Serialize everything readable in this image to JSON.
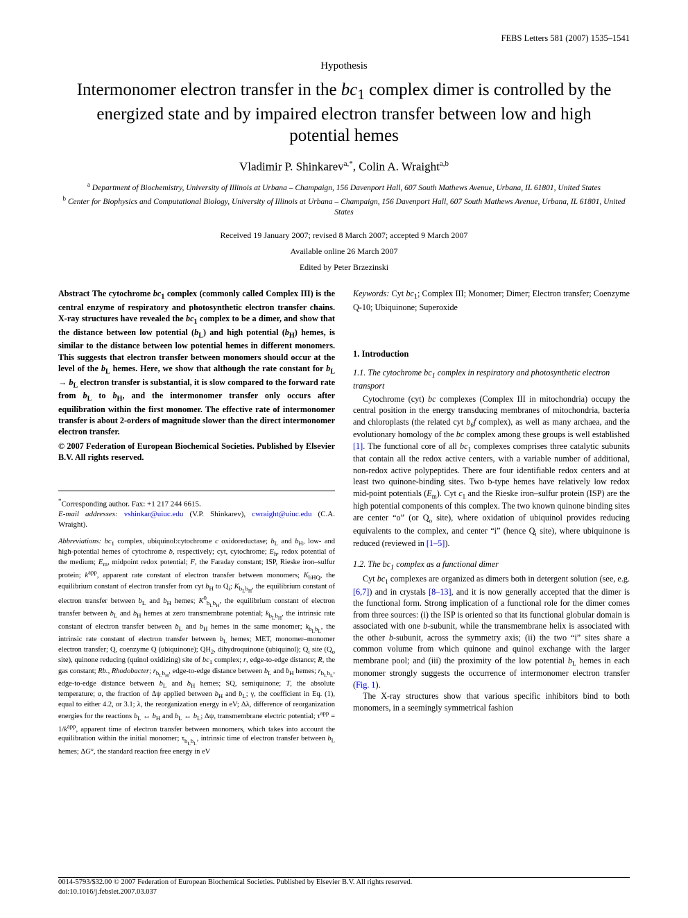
{
  "running_head": "FEBS Letters 581 (2007) 1535–1541",
  "article_type": "Hypothesis",
  "title_pre": "Intermonomer electron transfer in the ",
  "title_ital1": "bc",
  "title_sub1": "1",
  "title_mid": " complex dimer is controlled by the energized state and by impaired electron transfer between low and high potential hemes",
  "authors_line": "Vladimir P. Shinkarev",
  "authors_sup1": "a,*",
  "authors_sep": ", Colin A. Wraight",
  "authors_sup2": "a,b",
  "affil_a": "Department of Biochemistry, University of Illinois at Urbana – Champaign, 156 Davenport Hall, 607 South Mathews Avenue, Urbana, IL 61801, United States",
  "affil_b": "Center for Biophysics and Computational Biology, University of Illinois at Urbana – Champaign, 156 Davenport Hall, 607 South Mathews Avenue, Urbana, IL 61801, United States",
  "received": "Received 19 January 2007; revised 8 March 2007; accepted 9 March 2007",
  "online": "Available online 26 March 2007",
  "edited": "Edited by Peter Brzezinski",
  "abstract_label": "Abstract",
  "abstract_body_html": "The cytochrome <span class='ital'>bc</span><sub>1</sub> complex (commonly called Complex III) is the central enzyme of respiratory and photosynthetic electron transfer chains. X-ray structures have revealed the <span class='ital'>bc</span><sub>1</sub> complex to be a dimer, and show that the distance between low potential (<span class='ital'>b</span><sub>L</sub>) and high potential (<span class='ital'>b</span><sub>H</sub>) hemes, is similar to the distance between low potential hemes in different monomers. This suggests that electron transfer between monomers should occur at the level of the <span class='ital'>b</span><sub>L</sub> hemes. Here, we show that although the rate constant for <span class='ital'>b</span><sub>L</sub> → <span class='ital'>b</span><sub>L</sub> electron transfer is substantial, it is slow compared to the forward rate from <span class='ital'>b</span><sub>L</sub> to <span class='ital'>b</span><sub>H</sub>, and the intermonomer transfer only occurs after equilibration within the first monomer. The effective rate of intermonomer transfer is about 2-orders of magnitude slower than the direct intermonomer electron transfer.",
  "copyright_line": "© 2007 Federation of European Biochemical Societies. Published by Elsevier B.V. All rights reserved.",
  "corresp_star": "*",
  "corresp_text": "Corresponding author. Fax: +1 217 244 6615.",
  "email_label": "E-mail addresses:",
  "email1": "vshinkar@uiuc.edu",
  "email1_who": "(V.P. Shinkarev),",
  "email2": "cwraight@uiuc.edu",
  "email2_who": "(C.A. Wraight).",
  "abbrev_label": "Abbreviations:",
  "abbrev_body_html": "<span class='ital'>bc</span><sub>1</sub> complex, ubiquinol:cytochrome <span class='ital'>c</span> oxidoreductase; <span class='ital'>b</span><sub>L</sub> and <span class='ital'>b</span><sub>H</sub>, low- and high-potential hemes of cytochrome <span class='ital'>b</span>, respectively; cyt, cytochrome; <span class='ital'>E</span><sub>h</sub>, redox potential of the medium; <span class='ital'>E</span><sub>m</sub>, midpoint redox potential; <span class='ital'>F</span>, the Faraday constant; ISP, Rieske iron–sulfur protein; <span class='ital'>k</span><sup>app</sup>, apparent rate constant of electron transfer between monomers; <span class='ital'>K</span><sub>bHQ</sub>, the equilibrium constant of electron transfer from cyt <span class='ital'>b</span><sub>H</sub> to Q<sub>i</sub>; <span class='ital'>K</span><sub>b<sub>L</sub>b<sub>H</sub></sub>, the equilibrium constant of electron transfer between <span class='ital'>b</span><sub>L</sub> and <span class='ital'>b</span><sub>H</sub> hemes; <span class='ital'>K</span><sup>0</sup><sub>b<sub>L</sub>b<sub>H</sub></sub>, the equilibrium constant of electron transfer between <span class='ital'>b</span><sub>L</sub> and <span class='ital'>b</span><sub>H</sub> hemes at zero transmembrane potential; <span class='ital'>k</span><sub>b<sub>L</sub>b<sub>H</sub></sub>, the intrinsic rate constant of electron transfer between <span class='ital'>b</span><sub>L</sub> and <span class='ital'>b</span><sub>H</sub> hemes in the same monomer; <span class='ital'>k</span><sub>b<sub>L</sub>b<sub>L</sub></sub>, the intrinsic rate constant of electron transfer between <span class='ital'>b</span><sub>L</sub> hemes; MET, monomer–monomer electron transfer; Q, coenzyme Q (ubiquinone); QH<sub>2</sub>, dihydroquinone (ubiquinol); Q<sub>i</sub> site (Q<sub>o</sub> site), quinone reducing (quinol oxidizing) site of <span class='ital'>bc</span><sub>1</sub> complex; <span class='ital'>r</span>, edge-to-edge distance; <span class='ital'>R</span>, the gas constant; <span class='ital'>Rb.</span>, <span class='ital'>Rhodobacter</span>; <span class='ital'>r</span><sub>b<sub>L</sub>b<sub>H</sub></sub>, edge-to-edge distance between <span class='ital'>b</span><sub>L</sub> and <span class='ital'>b</span><sub>H</sub> hemes; <span class='ital'>r</span><sub>b<sub>L</sub>b<sub>L</sub></sub>, edge-to-edge distance between <span class='ital'>b</span><sub>L</sub> and <span class='ital'>b</span><sub>H</sub> hemes; SQ, semiquinone; <span class='ital'>T</span>, the absolute temperature; α, the fraction of Δψ applied between <span class='ital'>b</span><sub>H</sub> and <span class='ital'>b</span><sub>L</sub>; γ, the coefficient in Eq. (1), equal to either 4.2, or 3.1; λ, the reorganization energy in eV; Δλ, difference of reorganization energies for the reactions <span class='ital'>b</span><sub>L</sub> ↔ <span class='ital'>b</span><sub>H</sub> and <span class='ital'>b</span><sub>L</sub> ↔ <span class='ital'>b</span><sub>L</sub>; Δψ, transmembrane electric potential; τ<sup>app</sup> = 1/<span class='ital'>k</span><sup>app</sup>, apparent time of electron transfer between monomers, which takes into account the equilibration within the initial monomer; τ<sub>b<sub>L</sub>b<sub>L</sub></sub>, intrinsic time of electron transfer between <span class='ital'>b</span><sub>L</sub> hemes; Δ<span class='ital'>G</span>°, the standard reaction free energy in eV",
  "keywords_label": "Keywords:",
  "keywords_body_html": "Cyt <span class='ital'>bc</span><sub>1</sub>; Complex III; Monomer; Dimer; Electron transfer; Coenzyme Q-10; Ubiquinone; Superoxide",
  "sec1": "1. Introduction",
  "subsec11_html": "1.1. The cytochrome bc<sub>1</sub> complex in respiratory and photosynthetic electron transport",
  "p11_html": "Cytochrome (cyt) <span class='ital'>bc</span> complexes (Complex III in mitochondria) occupy the central position in the energy transducing membranes of mitochondria, bacteria and chloroplasts (the related cyt <span class='ital'>b<sub>6</sub>f</span> complex), as well as many archaea, and the evolutionary homology of the <span class='ital'>bc</span> complex among these groups is well established <a class='ref'>[1]</a>. The functional core of all <span class='ital'>bc</span><sub>1</sub> complexes comprises three catalytic subunits that contain all the redox active centers, with a variable number of additional, non-redox active polypeptides. There are four identifiable redox centers and at least two quinone-binding sites. Two b-type hemes have relatively low redox mid-point potentials (<span class='ital'>E</span><sub>m</sub>). Cyt <span class='ital'>c</span><sub>1</sub> and the Rieske iron–sulfur protein (ISP) are the high potential components of this complex. The two known quinone binding sites are center “o” (or Q<sub>o</sub> site), where oxidation of ubiquinol provides reducing equivalents to the complex, and center “i” (hence Q<sub>i</sub> site), where ubiquinone is reduced (reviewed in <a class='ref'>[1–5]</a>).",
  "subsec12_html": "1.2. The bc<sub>1</sub> complex as a functional dimer",
  "p12a_html": "Cyt <span class='ital'>bc</span><sub>1</sub> complexes are organized as dimers both in detergent solution (see, e.g. <a class='ref'>[6,7]</a>) and in crystals <a class='ref'>[8–13]</a>, and it is now generally accepted that the dimer is the functional form. Strong implication of a functional role for the dimer comes from three sources: (i) the ISP is oriented so that its functional globular domain is associated with one <span class='ital'>b</span>-subunit, while the transmembrane helix is associated with the other <span class='ital'>b</span>-subunit, across the symmetry axis; (ii) the two “i” sites share a common volume from which quinone and quinol exchange with the larger membrane pool; and (iii) the proximity of the low potential <span class='ital'>b</span><sub>L</sub> hemes in each monomer strongly suggests the occurrence of intermonomer electron transfer (<a class='ref'>Fig. 1</a>).",
  "p12b_html": "The X-ray structures show that various specific inhibitors bind to both monomers, in a seemingly symmetrical fashion",
  "footer_line1": "0014-5793/$32.00 © 2007 Federation of European Biochemical Societies. Published by Elsevier B.V. All rights reserved.",
  "footer_line2": "doi:10.1016/j.febslet.2007.03.037"
}
